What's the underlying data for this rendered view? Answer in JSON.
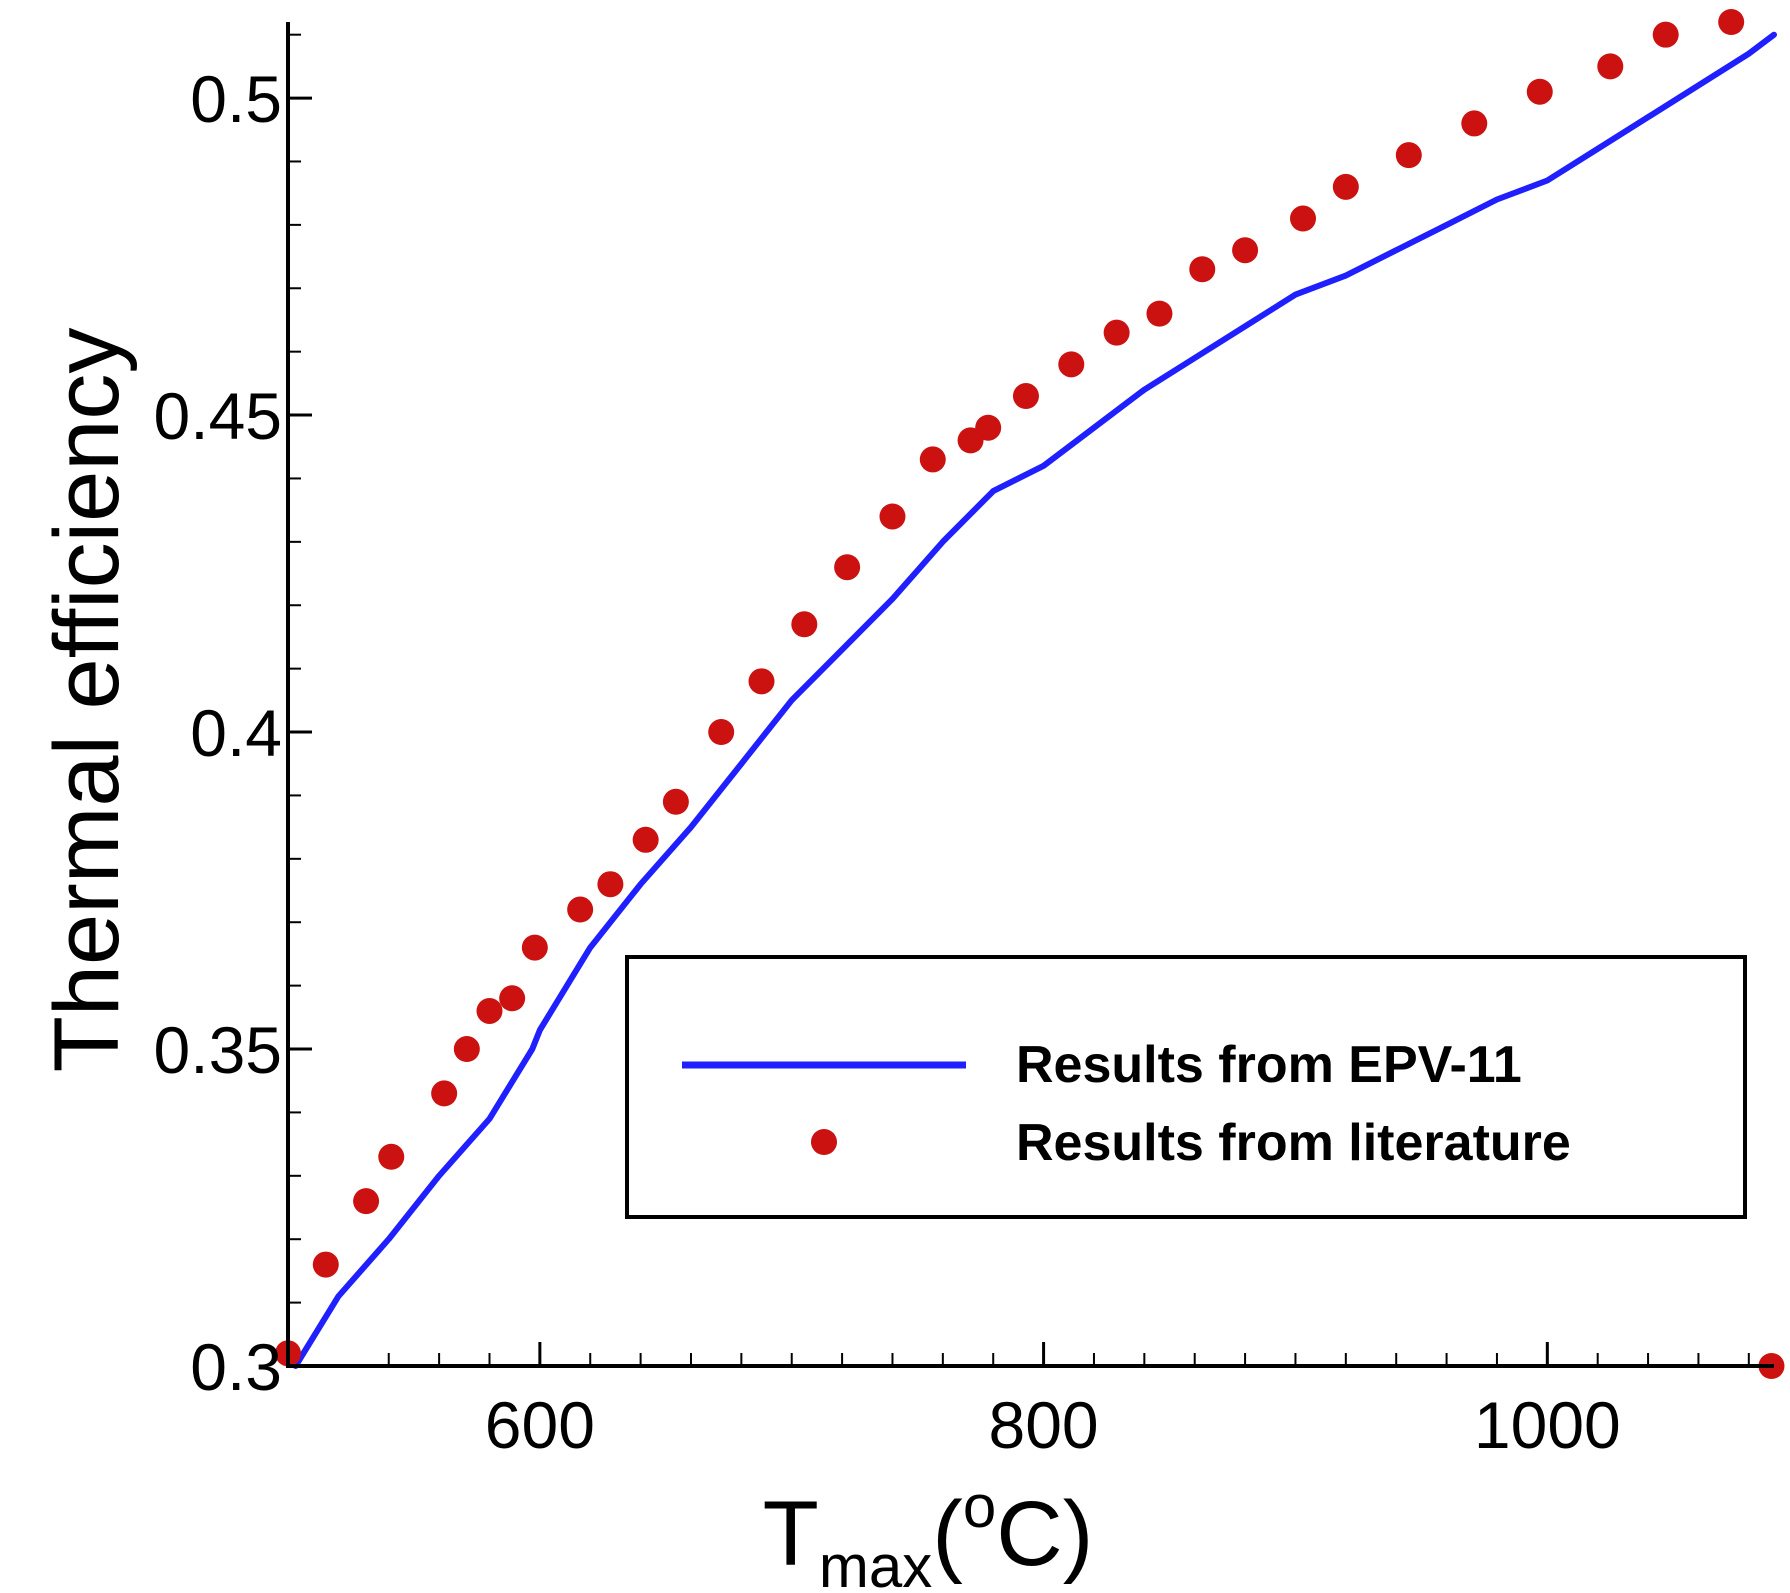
{
  "chart_data": {
    "type": "line",
    "title": "",
    "xlabel": {
      "main": "T",
      "subscript": "max",
      "open": "(",
      "superscript": "o",
      "unit": "C",
      "close": ")"
    },
    "ylabel": "Thermal efficiency",
    "xlim": [
      500,
      1090
    ],
    "ylim": [
      0.3,
      0.512
    ],
    "x_major_ticks": [
      600,
      800,
      1000
    ],
    "x_major_tick_labels": [
      "600",
      "800",
      "1000"
    ],
    "x_minor_ticks": [
      540,
      560,
      580,
      620,
      640,
      660,
      680,
      700,
      720,
      740,
      760,
      780,
      820,
      840,
      860,
      880,
      900,
      920,
      940,
      960,
      980,
      1020,
      1040,
      1060,
      1080
    ],
    "y_major_ticks": [
      0.3,
      0.35,
      0.4,
      0.45,
      0.5
    ],
    "y_major_tick_labels": [
      "0.3",
      "0.35",
      "0.4",
      "0.45",
      "0.5"
    ],
    "y_minor_ticks": [
      0.31,
      0.32,
      0.33,
      0.34,
      0.36,
      0.37,
      0.38,
      0.39,
      0.41,
      0.42,
      0.43,
      0.44,
      0.46,
      0.47,
      0.48,
      0.49,
      0.51
    ],
    "grid": false,
    "legend_position": "bottom-right",
    "series": [
      {
        "name": "Results from EPV-11",
        "style": "line",
        "color": "#1f1fff",
        "x": [
          503,
          520,
          540,
          560,
          580,
          597,
          600,
          620,
          640,
          660,
          680,
          700,
          720,
          740,
          760,
          780,
          800,
          820,
          840,
          860,
          880,
          900,
          920,
          940,
          960,
          980,
          1000,
          1020,
          1040,
          1060,
          1080,
          1090
        ],
        "y": [
          0.3,
          0.311,
          0.32,
          0.33,
          0.339,
          0.35,
          0.353,
          0.366,
          0.376,
          0.385,
          0.395,
          0.405,
          0.413,
          0.421,
          0.43,
          0.438,
          0.442,
          0.448,
          0.454,
          0.459,
          0.464,
          0.469,
          0.472,
          0.476,
          0.48,
          0.484,
          0.487,
          0.492,
          0.497,
          0.502,
          0.507,
          0.51
        ]
      },
      {
        "name": "Results from literature",
        "style": "markers",
        "color": "#cc1111",
        "x": [
          500,
          515,
          531,
          541,
          562,
          571,
          580,
          589,
          598,
          616,
          628,
          642,
          654,
          672,
          688,
          705,
          722,
          740,
          756,
          771,
          778,
          793,
          811,
          829,
          846,
          863,
          880,
          903,
          920,
          945,
          971,
          997,
          1025,
          1047,
          1073,
          1089
        ],
        "y": [
          0.302,
          0.316,
          0.326,
          0.333,
          0.343,
          0.35,
          0.356,
          0.358,
          0.366,
          0.372,
          0.376,
          0.383,
          0.389,
          0.4,
          0.408,
          0.417,
          0.426,
          0.434,
          0.443,
          0.446,
          0.448,
          0.453,
          0.458,
          0.463,
          0.466,
          0.473,
          0.476,
          0.481,
          0.486,
          0.491,
          0.496,
          0.501,
          0.505,
          0.51,
          0.512,
          0.3
        ]
      }
    ],
    "colors": {
      "line": "#1f1fff",
      "markers": "#cc1111",
      "axes": "#000000"
    }
  }
}
